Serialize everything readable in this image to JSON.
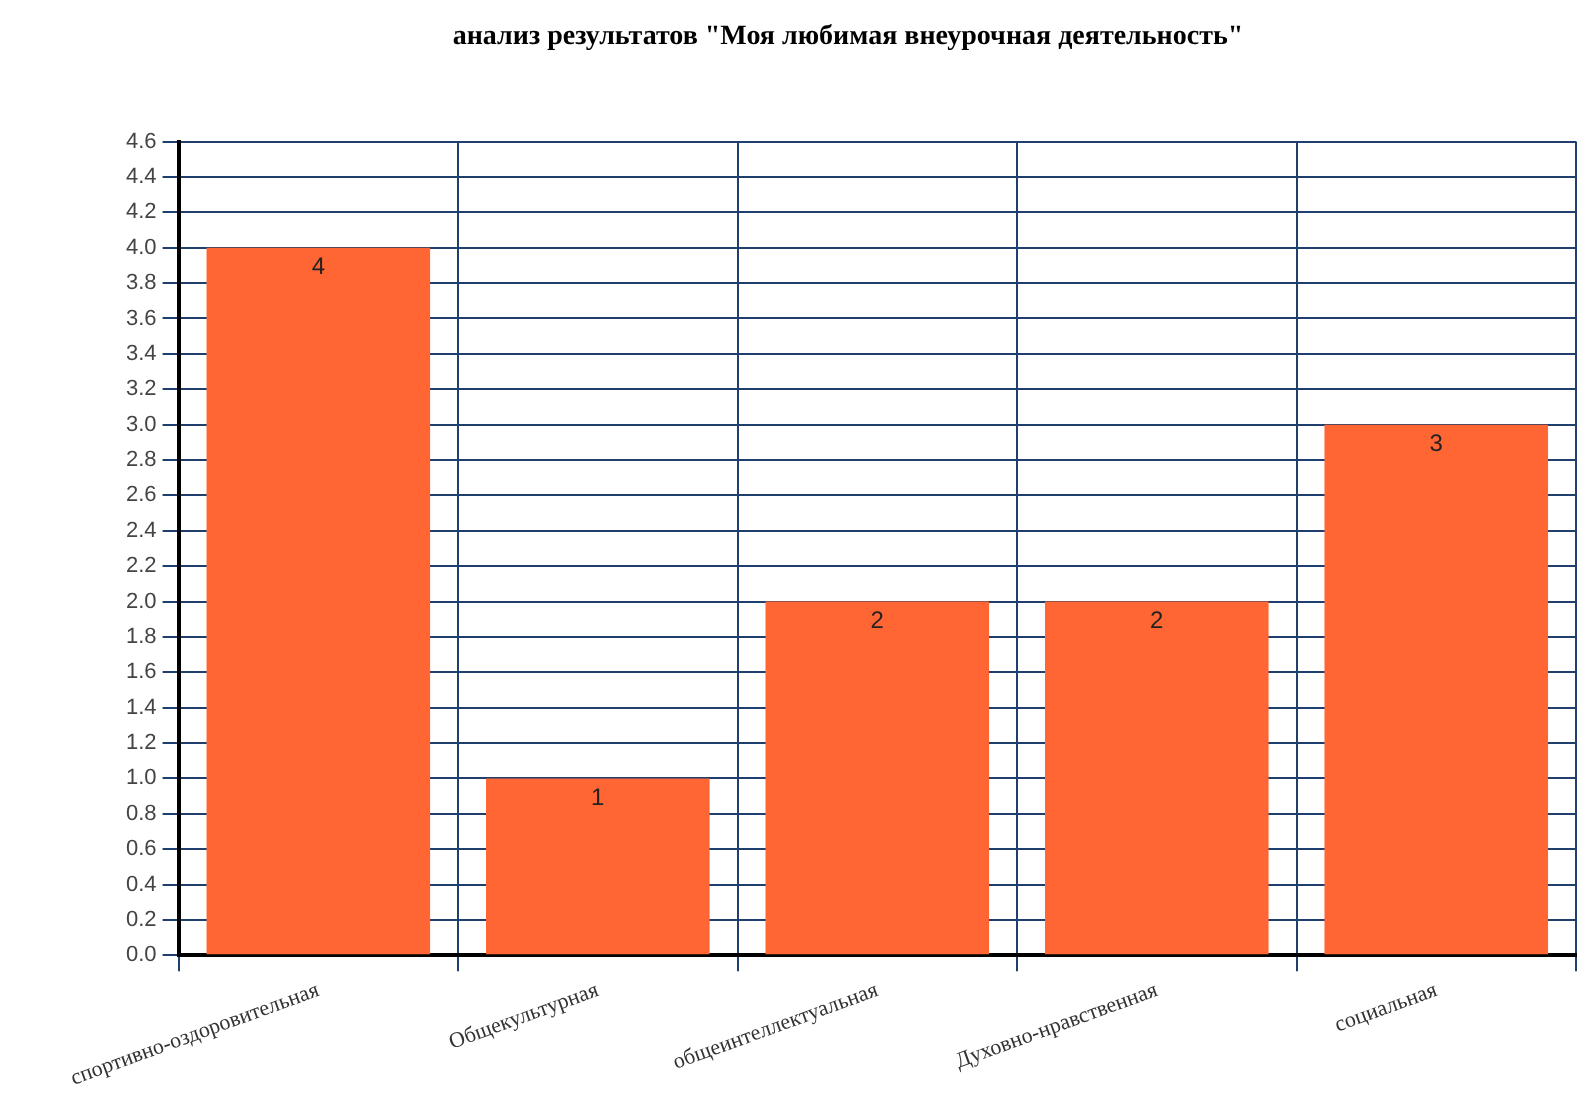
{
  "chart_data": {
    "type": "bar",
    "title": "анализ результатов \"Моя любимая внеурочная деятельность\"",
    "categories": [
      "спортивно-оздоровительная",
      "Общекультурная",
      "общеинтеллектуальная",
      "Духовно-нравственная",
      "социальная"
    ],
    "values": [
      4,
      1,
      2,
      2,
      3
    ],
    "color": "#ff6633",
    "ylim": [
      0,
      4.6
    ],
    "yticks": [
      {
        "value": 0,
        "label": "0.0"
      },
      {
        "value": 0.2,
        "label": "0.2"
      },
      {
        "value": 0.4,
        "label": "0.4"
      },
      {
        "value": 0.6,
        "label": "0.6"
      },
      {
        "value": 0.8,
        "label": "0.8"
      },
      {
        "value": 1,
        "label": "1.0"
      },
      {
        "value": 1.2,
        "label": "1.2"
      },
      {
        "value": 1.4,
        "label": "1.4"
      },
      {
        "value": 1.6,
        "label": "1.6"
      },
      {
        "value": 1.8,
        "label": "1.8"
      },
      {
        "value": 2,
        "label": "2.0"
      },
      {
        "value": 2.2,
        "label": "2.2"
      },
      {
        "value": 2.4,
        "label": "2.4"
      },
      {
        "value": 2.6,
        "label": "2.6"
      },
      {
        "value": 2.8,
        "label": "2.8"
      },
      {
        "value": 3,
        "label": "3.0"
      },
      {
        "value": 3.2,
        "label": "3.2"
      },
      {
        "value": 3.4,
        "label": "3.4"
      },
      {
        "value": 3.6,
        "label": "3.6"
      },
      {
        "value": 3.8,
        "label": "3.8"
      },
      {
        "value": 4,
        "label": "4.0"
      },
      {
        "value": 4.2,
        "label": "4.2"
      },
      {
        "value": 4.4,
        "label": "4.4"
      },
      {
        "value": 4.6,
        "label": "4.6"
      }
    ],
    "grid": true,
    "data_labels": true
  }
}
